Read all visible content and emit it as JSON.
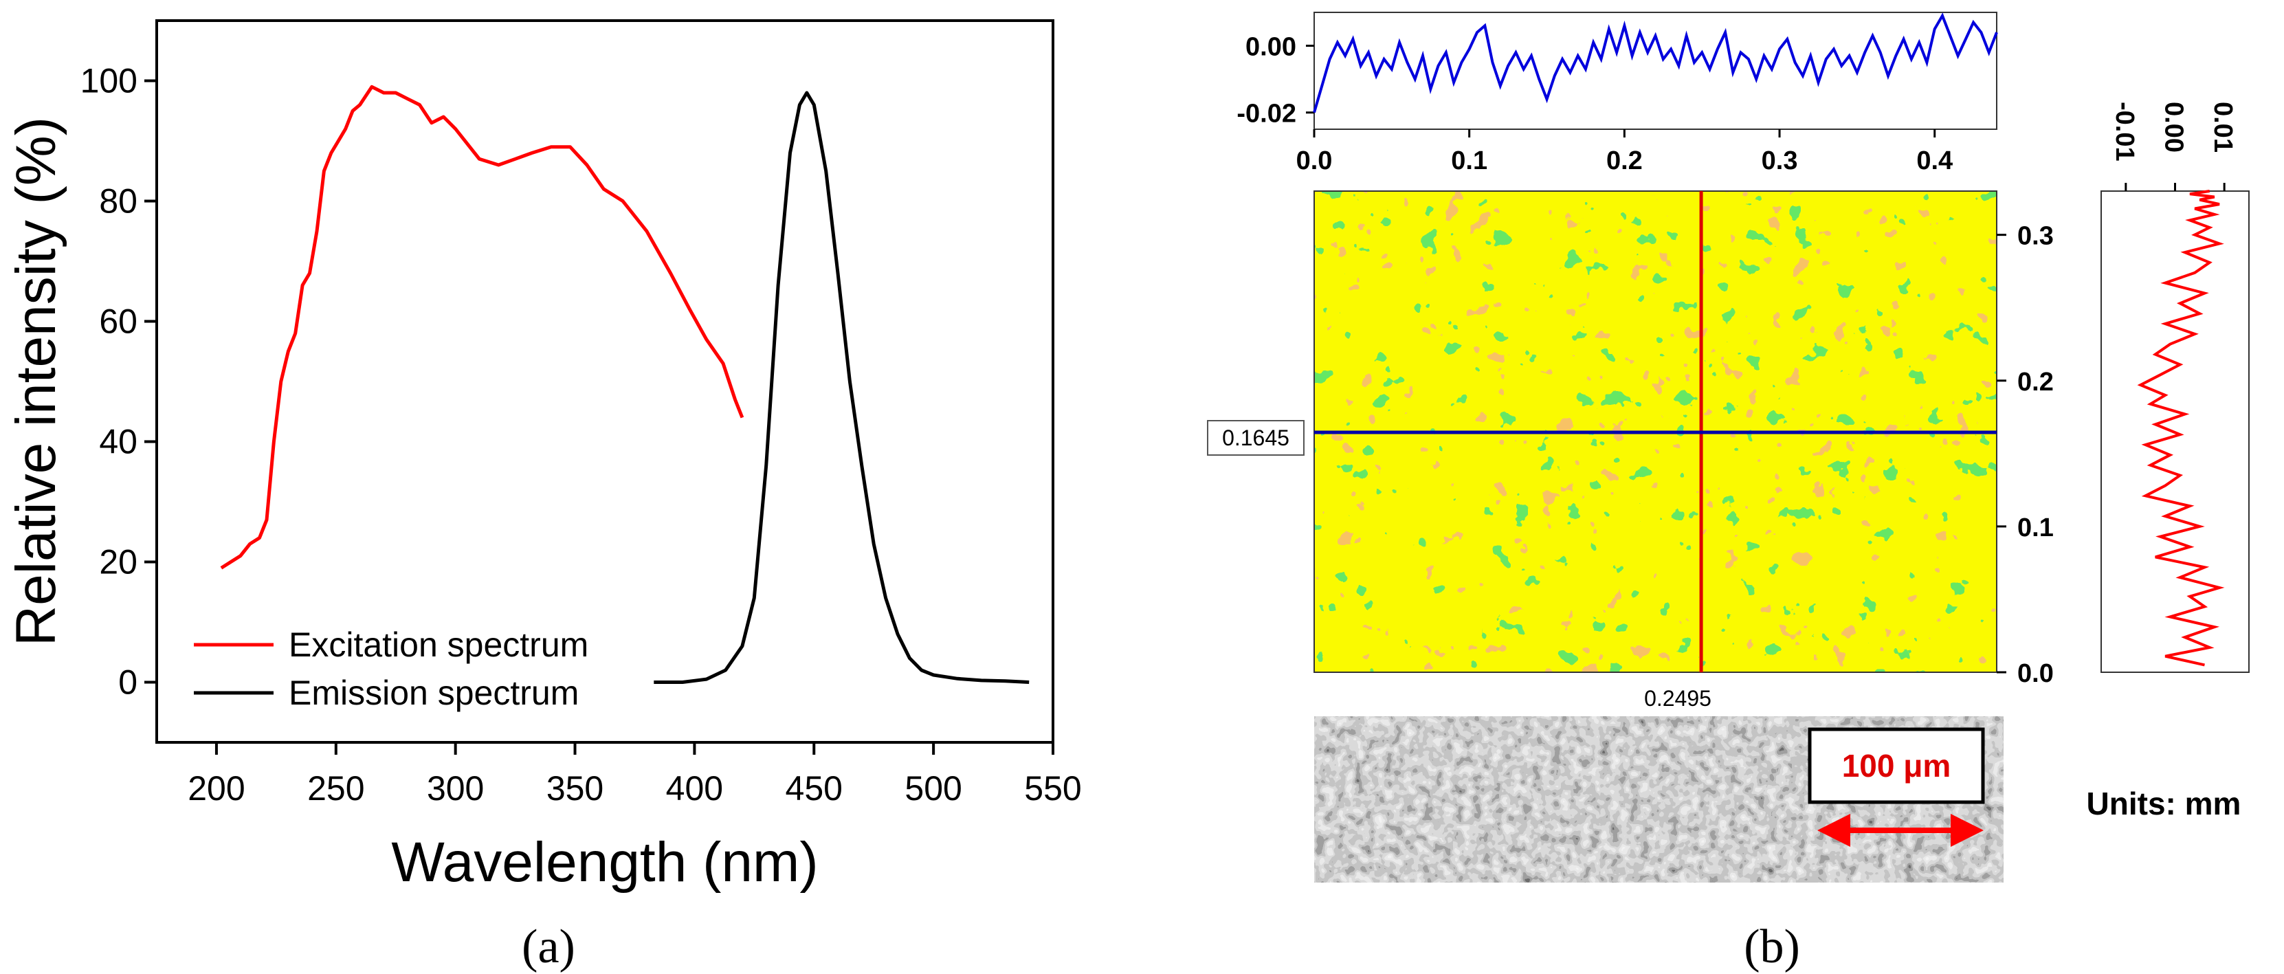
{
  "panel_a": {
    "caption": "(a)",
    "legend": {
      "position": "bottom-left",
      "entries": [
        "Excitation spectrum",
        "Emission spectrum"
      ]
    }
  },
  "panel_b": {
    "caption": "(b)",
    "crosshair": {
      "x_value_label": "0.2495",
      "y_value_label": "0.1645"
    },
    "scale_bar_label": "100 μm",
    "units_label": "Units: mm"
  },
  "colors": {
    "excitation": "#ff0000",
    "emission": "#000000",
    "profile_x": "#0000dd",
    "profile_y": "#ff0000",
    "crosshair_v": "#dd0000",
    "crosshair_h": "#0000aa",
    "map_yellow": "#f5f500",
    "map_green": "#22cc22",
    "map_orange": "#f08a20"
  },
  "chart_data": [
    {
      "type": "line",
      "id": "spectra",
      "title": "",
      "xlabel": "Wavelength (nm)",
      "ylabel": "Relative intensity (%)",
      "xlim": [
        175,
        550
      ],
      "ylim": [
        -10,
        110
      ],
      "xticks": [
        200,
        250,
        300,
        350,
        400,
        450,
        500,
        550
      ],
      "yticks": [
        0,
        20,
        40,
        60,
        80,
        100
      ],
      "series": [
        {
          "name": "Excitation spectrum",
          "color": "#ff0000",
          "x": [
            202,
            206,
            210,
            214,
            218,
            221,
            224,
            227,
            230,
            233,
            236,
            239,
            242,
            245,
            248,
            251,
            254,
            257,
            260,
            265,
            270,
            275,
            280,
            285,
            290,
            295,
            300,
            310,
            318,
            325,
            332,
            340,
            348,
            355,
            362,
            370,
            380,
            390,
            398,
            405,
            412,
            417,
            420
          ],
          "y": [
            19,
            20,
            21,
            23,
            24,
            27,
            40,
            50,
            55,
            58,
            66,
            68,
            75,
            85,
            88,
            90,
            92,
            95,
            96,
            99,
            98,
            98,
            97,
            96,
            93,
            94,
            92,
            87,
            86,
            87,
            88,
            89,
            89,
            86,
            82,
            80,
            75,
            68,
            62,
            57,
            53,
            47,
            44
          ]
        },
        {
          "name": "Emission spectrum",
          "color": "#000000",
          "x": [
            383,
            395,
            405,
            413,
            420,
            425,
            430,
            435,
            440,
            444,
            447,
            450,
            455,
            460,
            465,
            470,
            475,
            480,
            485,
            490,
            495,
            500,
            510,
            520,
            530,
            540
          ],
          "y": [
            0,
            0,
            0.5,
            2,
            6,
            14,
            36,
            66,
            88,
            96,
            98,
            96,
            85,
            68,
            50,
            36,
            23,
            14,
            8,
            4,
            2,
            1.2,
            0.6,
            0.3,
            0.2,
            0
          ]
        }
      ]
    },
    {
      "type": "line",
      "id": "profile_x",
      "title": "",
      "xlim": [
        0,
        0.44
      ],
      "ylim": [
        -0.025,
        0.01
      ],
      "xticks": [
        "0.0",
        "0.1",
        "0.2",
        "0.3",
        "0.4"
      ],
      "yticks": [
        "0.00",
        "-0.02"
      ],
      "ytick_values": [
        0,
        -0.02
      ],
      "series": [
        {
          "name": "x profile",
          "color": "#0000dd",
          "x": [
            0,
            0.005,
            0.01,
            0.015,
            0.02,
            0.025,
            0.03,
            0.035,
            0.04,
            0.045,
            0.05,
            0.055,
            0.06,
            0.065,
            0.07,
            0.075,
            0.08,
            0.085,
            0.09,
            0.095,
            0.1,
            0.105,
            0.11,
            0.115,
            0.12,
            0.125,
            0.13,
            0.135,
            0.14,
            0.145,
            0.15,
            0.155,
            0.16,
            0.165,
            0.17,
            0.175,
            0.18,
            0.185,
            0.19,
            0.195,
            0.2,
            0.205,
            0.21,
            0.215,
            0.22,
            0.225,
            0.23,
            0.235,
            0.24,
            0.245,
            0.25,
            0.255,
            0.26,
            0.265,
            0.27,
            0.275,
            0.28,
            0.285,
            0.29,
            0.295,
            0.3,
            0.305,
            0.31,
            0.315,
            0.32,
            0.325,
            0.33,
            0.335,
            0.34,
            0.345,
            0.35,
            0.355,
            0.36,
            0.365,
            0.37,
            0.375,
            0.38,
            0.385,
            0.39,
            0.395,
            0.4,
            0.405,
            0.41,
            0.415,
            0.42,
            0.425,
            0.43,
            0.435,
            0.44
          ],
          "y": [
            -0.02,
            -0.012,
            -0.004,
            0.001,
            -0.003,
            0.002,
            -0.006,
            -0.002,
            -0.009,
            -0.004,
            -0.007,
            0.001,
            -0.005,
            -0.01,
            -0.003,
            -0.013,
            -0.006,
            -0.002,
            -0.011,
            -0.005,
            -0.001,
            0.004,
            0.006,
            -0.005,
            -0.012,
            -0.006,
            -0.002,
            -0.007,
            -0.003,
            -0.01,
            -0.016,
            -0.009,
            -0.004,
            -0.008,
            -0.003,
            -0.007,
            0.001,
            -0.004,
            0.005,
            -0.002,
            0.006,
            -0.003,
            0.004,
            -0.002,
            0.003,
            -0.004,
            -0.001,
            -0.006,
            0.003,
            -0.005,
            -0.002,
            -0.007,
            -0.001,
            0.004,
            -0.008,
            -0.002,
            -0.004,
            -0.01,
            -0.003,
            -0.007,
            -0.001,
            0.002,
            -0.005,
            -0.009,
            -0.003,
            -0.011,
            -0.004,
            -0.001,
            -0.006,
            -0.003,
            -0.008,
            -0.002,
            0.003,
            -0.002,
            -0.009,
            -0.003,
            0.002,
            -0.004,
            0.001,
            -0.005,
            0.005,
            0.009,
            0.003,
            -0.003,
            0.002,
            0.007,
            0.004,
            -0.002,
            0.004
          ]
        }
      ]
    },
    {
      "type": "line",
      "id": "profile_y",
      "title": "",
      "xlim": [
        -0.015,
        0.015
      ],
      "ylim": [
        0,
        0.33
      ],
      "xticks": [
        "-0.01",
        "0.00",
        "0.01"
      ],
      "xtick_values": [
        -0.01,
        0,
        0.01
      ],
      "series": [
        {
          "name": "y profile",
          "color": "#ff0000",
          "x": [
            0.006,
            -0.002,
            0.007,
            0.002,
            0.008,
            -0.001,
            0.006,
            0.003,
            0.009,
            0.001,
            0.006,
            -0.004,
            0.003,
            -0.003,
            0.005,
            -0.002,
            0.003,
            -0.006,
            -0.002,
            0.001,
            -0.005,
            -0.001,
            -0.006,
            0.001,
            -0.004,
            0.002,
            -0.005,
            -0.002,
            -0.007,
            -0.003,
            0.001,
            -0.004,
            -0.001,
            0.004,
            -0.002,
            0.005,
            0.001,
            0.006,
            -0.002,
            0.004,
            0.007,
            0.002,
            0.009,
            0.004,
            0.007,
            0.003,
            0.008,
            0.004,
            0.009,
            0.005,
            0.008,
            0.003,
            0.007
          ],
          "y": [
            0.005,
            0.011,
            0.017,
            0.024,
            0.031,
            0.038,
            0.045,
            0.052,
            0.058,
            0.065,
            0.072,
            0.079,
            0.086,
            0.093,
            0.1,
            0.107,
            0.114,
            0.121,
            0.128,
            0.135,
            0.142,
            0.149,
            0.156,
            0.163,
            0.17,
            0.177,
            0.184,
            0.19,
            0.197,
            0.204,
            0.211,
            0.218,
            0.225,
            0.232,
            0.239,
            0.246,
            0.253,
            0.26,
            0.267,
            0.274,
            0.281,
            0.288,
            0.294,
            0.3,
            0.305,
            0.31,
            0.314,
            0.318,
            0.321,
            0.324,
            0.326,
            0.328,
            0.33
          ]
        }
      ]
    },
    {
      "type": "heatmap",
      "id": "surface_map",
      "title": "",
      "xlim": [
        0,
        0.44
      ],
      "ylim": [
        0,
        0.33
      ],
      "yticks": [
        "0.0",
        "0.1",
        "0.2",
        "0.3"
      ],
      "ytick_values": [
        0,
        0.1,
        0.2,
        0.3
      ],
      "colorscale": [
        "#f5f500",
        "#22cc22",
        "#f08a20"
      ],
      "crosshair": {
        "x": 0.2495,
        "y": 0.1645
      }
    }
  ]
}
